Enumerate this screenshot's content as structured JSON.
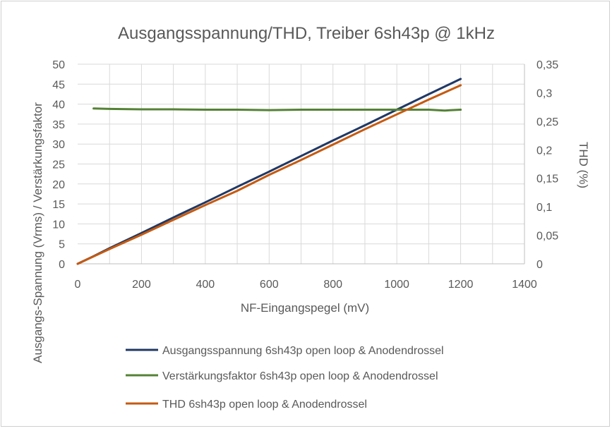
{
  "chart_data": {
    "type": "line",
    "title": "Ausgangsspannung/THD, Treiber 6sh43p @ 1kHz",
    "xlabel": "NF-Eingangspegel (mV)",
    "ylabel": "Ausgangs-Spannung (Vrms) / Verstärkungsfaktor",
    "y2label": "THD (%)",
    "xlim": [
      0,
      1400
    ],
    "ylim": [
      0,
      50
    ],
    "y2lim": [
      0,
      0.35
    ],
    "x_ticks": [
      "0",
      "200",
      "400",
      "600",
      "800",
      "1000",
      "1200",
      "1400"
    ],
    "y_ticks": [
      "0",
      "5",
      "10",
      "15",
      "20",
      "25",
      "30",
      "35",
      "40",
      "45",
      "50"
    ],
    "y2_ticks": [
      "0",
      "0,05",
      "0,1",
      "0,15",
      "0,2",
      "0,25",
      "0,3",
      "0,35"
    ],
    "grid": true,
    "legend_position": "bottom",
    "series": [
      {
        "name": "Ausgangsspannung 6sh43p open loop & Anodendrossel",
        "color": "#203864",
        "axis": "left",
        "x": [
          0,
          50,
          100,
          200,
          300,
          400,
          500,
          600,
          700,
          800,
          900,
          1000,
          1100,
          1200
        ],
        "y": [
          0,
          1.9,
          3.9,
          7.7,
          11.6,
          15.4,
          19.3,
          23.1,
          27.0,
          30.9,
          34.7,
          38.6,
          42.5,
          46.3
        ]
      },
      {
        "name": "Verstärkungsfaktor 6sh43p open loop & Anodendrossel",
        "color": "#548235",
        "axis": "left",
        "x": [
          50,
          100,
          200,
          300,
          400,
          500,
          600,
          700,
          800,
          900,
          1000,
          1100,
          1150,
          1200
        ],
        "y": [
          38.9,
          38.8,
          38.7,
          38.7,
          38.6,
          38.6,
          38.5,
          38.6,
          38.6,
          38.6,
          38.6,
          38.6,
          38.4,
          38.6
        ]
      },
      {
        "name": "THD 6sh43p open loop & Anodendrossel",
        "color": "#c55a11",
        "axis": "right",
        "x": [
          0,
          100,
          200,
          300,
          400,
          500,
          600,
          700,
          800,
          900,
          1000,
          1100,
          1200
        ],
        "y": [
          0,
          0.026,
          0.051,
          0.077,
          0.103,
          0.128,
          0.156,
          0.182,
          0.209,
          0.236,
          0.262,
          0.288,
          0.313
        ]
      }
    ]
  }
}
